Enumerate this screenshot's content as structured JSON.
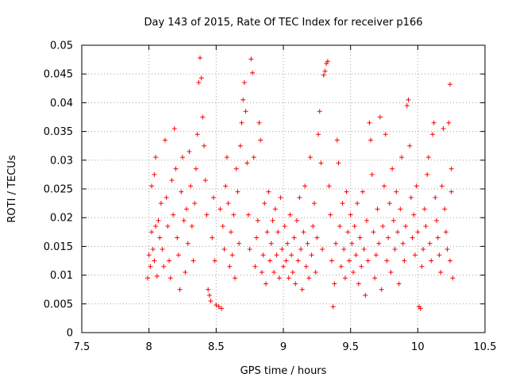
{
  "chart_data": {
    "type": "scatter",
    "title": "Day 143 of 2015, Rate Of TEC Index for receiver p166",
    "xlabel": "GPS time / hours",
    "ylabel": "ROTI / TECUs",
    "xlim": [
      7.5,
      10.5
    ],
    "ylim": [
      0,
      0.05
    ],
    "xticks": [
      {
        "value": 7.5,
        "label": "7.5"
      },
      {
        "value": 8,
        "label": "8"
      },
      {
        "value": 8.5,
        "label": "8.5"
      },
      {
        "value": 9,
        "label": "9"
      },
      {
        "value": 9.5,
        "label": "9.5"
      },
      {
        "value": 10,
        "label": "10"
      },
      {
        "value": 10.5,
        "label": "10.5"
      }
    ],
    "yticks": [
      {
        "value": 0,
        "label": "0"
      },
      {
        "value": 0.005,
        "label": "0.005"
      },
      {
        "value": 0.01,
        "label": "0.01"
      },
      {
        "value": 0.015,
        "label": "0.015"
      },
      {
        "value": 0.02,
        "label": "0.02"
      },
      {
        "value": 0.025,
        "label": "0.025"
      },
      {
        "value": 0.03,
        "label": "0.03"
      },
      {
        "value": 0.035,
        "label": "0.035"
      },
      {
        "value": 0.04,
        "label": "0.04"
      },
      {
        "value": 0.045,
        "label": "0.045"
      },
      {
        "value": 0.05,
        "label": "0.05"
      }
    ],
    "grid": true,
    "marker": "+",
    "marker_color": "#ff0000",
    "series": [
      {
        "name": "ROTI",
        "x_range": [
          7.98,
          10.26
        ],
        "points": [
          [
            7.99,
            0.0095
          ],
          [
            8.0,
            0.0135
          ],
          [
            8.01,
            0.0115
          ],
          [
            8.02,
            0.0175
          ],
          [
            8.03,
            0.0145
          ],
          [
            8.04,
            0.0125
          ],
          [
            8.05,
            0.0185
          ],
          [
            8.06,
            0.0098
          ],
          [
            8.02,
            0.0255
          ],
          [
            8.04,
            0.0275
          ],
          [
            8.05,
            0.0305
          ],
          [
            8.07,
            0.0195
          ],
          [
            8.08,
            0.0165
          ],
          [
            8.09,
            0.0225
          ],
          [
            8.1,
            0.0145
          ],
          [
            8.11,
            0.0115
          ],
          [
            8.12,
            0.0335
          ],
          [
            8.13,
            0.0235
          ],
          [
            8.14,
            0.0185
          ],
          [
            8.15,
            0.0125
          ],
          [
            8.16,
            0.0095
          ],
          [
            8.17,
            0.0265
          ],
          [
            8.18,
            0.0205
          ],
          [
            8.19,
            0.0355
          ],
          [
            8.2,
            0.0285
          ],
          [
            8.21,
            0.0165
          ],
          [
            8.22,
            0.0135
          ],
          [
            8.23,
            0.0075
          ],
          [
            8.24,
            0.0245
          ],
          [
            8.25,
            0.0305
          ],
          [
            8.26,
            0.0195
          ],
          [
            8.27,
            0.0105
          ],
          [
            8.28,
            0.0215
          ],
          [
            8.29,
            0.0155
          ],
          [
            8.3,
            0.0315
          ],
          [
            8.31,
            0.0255
          ],
          [
            8.32,
            0.0185
          ],
          [
            8.33,
            0.0125
          ],
          [
            8.34,
            0.0225
          ],
          [
            8.35,
            0.0285
          ],
          [
            8.36,
            0.0345
          ],
          [
            8.37,
            0.0435
          ],
          [
            8.38,
            0.0478
          ],
          [
            8.39,
            0.0443
          ],
          [
            8.4,
            0.0375
          ],
          [
            8.41,
            0.0325
          ],
          [
            8.42,
            0.0265
          ],
          [
            8.43,
            0.0205
          ],
          [
            8.44,
            0.0075
          ],
          [
            8.45,
            0.0065
          ],
          [
            8.46,
            0.0055
          ],
          [
            8.47,
            0.0165
          ],
          [
            8.48,
            0.0235
          ],
          [
            8.49,
            0.0125
          ],
          [
            8.5,
            0.0048
          ],
          [
            8.52,
            0.0045
          ],
          [
            8.54,
            0.0042
          ],
          [
            8.53,
            0.0215
          ],
          [
            8.55,
            0.0185
          ],
          [
            8.56,
            0.0145
          ],
          [
            8.57,
            0.0255
          ],
          [
            8.58,
            0.0305
          ],
          [
            8.59,
            0.0225
          ],
          [
            8.6,
            0.0115
          ],
          [
            8.61,
            0.0175
          ],
          [
            8.62,
            0.0135
          ],
          [
            8.63,
            0.0205
          ],
          [
            8.64,
            0.0095
          ],
          [
            8.65,
            0.0285
          ],
          [
            8.66,
            0.0245
          ],
          [
            8.67,
            0.0155
          ],
          [
            8.68,
            0.0325
          ],
          [
            8.69,
            0.0365
          ],
          [
            8.7,
            0.0405
          ],
          [
            8.71,
            0.0435
          ],
          [
            8.72,
            0.0385
          ],
          [
            8.73,
            0.0295
          ],
          [
            8.74,
            0.0205
          ],
          [
            8.75,
            0.0145
          ],
          [
            8.76,
            0.0476
          ],
          [
            8.77,
            0.0452
          ],
          [
            8.78,
            0.0305
          ],
          [
            8.79,
            0.0115
          ],
          [
            8.8,
            0.0165
          ],
          [
            8.81,
            0.0195
          ],
          [
            8.82,
            0.0365
          ],
          [
            8.83,
            0.0335
          ],
          [
            8.84,
            0.0105
          ],
          [
            8.85,
            0.0135
          ],
          [
            8.86,
            0.0225
          ],
          [
            8.87,
            0.0085
          ],
          [
            8.88,
            0.0175
          ],
          [
            8.89,
            0.0245
          ],
          [
            8.9,
            0.0125
          ],
          [
            8.91,
            0.0155
          ],
          [
            8.92,
            0.0195
          ],
          [
            8.93,
            0.0105
          ],
          [
            8.94,
            0.0215
          ],
          [
            8.95,
            0.0135
          ],
          [
            8.96,
            0.0175
          ],
          [
            8.97,
            0.0095
          ],
          [
            8.98,
            0.0235
          ],
          [
            8.99,
            0.0145
          ],
          [
            9.0,
            0.0115
          ],
          [
            9.01,
            0.0185
          ],
          [
            9.02,
            0.0125
          ],
          [
            9.03,
            0.0155
          ],
          [
            9.04,
            0.0095
          ],
          [
            9.05,
            0.0205
          ],
          [
            9.06,
            0.0135
          ],
          [
            9.07,
            0.0105
          ],
          [
            9.08,
            0.0165
          ],
          [
            9.09,
            0.0085
          ],
          [
            9.1,
            0.0195
          ],
          [
            9.11,
            0.0125
          ],
          [
            9.12,
            0.0235
          ],
          [
            9.13,
            0.0145
          ],
          [
            9.14,
            0.0075
          ],
          [
            9.15,
            0.0175
          ],
          [
            9.16,
            0.0255
          ],
          [
            9.17,
            0.0115
          ],
          [
            9.18,
            0.0155
          ],
          [
            9.19,
            0.0095
          ],
          [
            9.2,
            0.0305
          ],
          [
            9.21,
            0.0135
          ],
          [
            9.22,
            0.0185
          ],
          [
            9.23,
            0.0225
          ],
          [
            9.24,
            0.0105
          ],
          [
            9.25,
            0.0165
          ],
          [
            9.26,
            0.0345
          ],
          [
            9.27,
            0.0385
          ],
          [
            9.28,
            0.0295
          ],
          [
            9.29,
            0.0145
          ],
          [
            9.3,
            0.0448
          ],
          [
            9.31,
            0.0455
          ],
          [
            9.32,
            0.0468
          ],
          [
            9.33,
            0.0472
          ],
          [
            9.34,
            0.0255
          ],
          [
            9.35,
            0.0205
          ],
          [
            9.36,
            0.0125
          ],
          [
            9.37,
            0.0045
          ],
          [
            9.38,
            0.0085
          ],
          [
            9.39,
            0.0155
          ],
          [
            9.4,
            0.0335
          ],
          [
            9.41,
            0.0295
          ],
          [
            9.42,
            0.0185
          ],
          [
            9.43,
            0.0115
          ],
          [
            9.44,
            0.0225
          ],
          [
            9.45,
            0.0145
          ],
          [
            9.46,
            0.0095
          ],
          [
            9.47,
            0.0245
          ],
          [
            9.48,
            0.0175
          ],
          [
            9.49,
            0.0125
          ],
          [
            9.5,
            0.0205
          ],
          [
            9.51,
            0.0155
          ],
          [
            9.52,
            0.0105
          ],
          [
            9.53,
            0.0185
          ],
          [
            9.54,
            0.0135
          ],
          [
            9.55,
            0.0225
          ],
          [
            9.56,
            0.0085
          ],
          [
            9.57,
            0.0165
          ],
          [
            9.58,
            0.0115
          ],
          [
            9.59,
            0.0245
          ],
          [
            9.6,
            0.0145
          ],
          [
            9.61,
            0.0065
          ],
          [
            9.62,
            0.0195
          ],
          [
            9.63,
            0.0125
          ],
          [
            9.64,
            0.0365
          ],
          [
            9.65,
            0.0335
          ],
          [
            9.66,
            0.0275
          ],
          [
            9.67,
            0.0175
          ],
          [
            9.68,
            0.0095
          ],
          [
            9.69,
            0.0135
          ],
          [
            9.7,
            0.0215
          ],
          [
            9.71,
            0.0155
          ],
          [
            9.72,
            0.0375
          ],
          [
            9.73,
            0.0075
          ],
          [
            9.74,
            0.0185
          ],
          [
            9.75,
            0.0255
          ],
          [
            9.76,
            0.0345
          ],
          [
            9.77,
            0.0125
          ],
          [
            9.78,
            0.0165
          ],
          [
            9.79,
            0.0225
          ],
          [
            9.8,
            0.0105
          ],
          [
            9.81,
            0.0285
          ],
          [
            9.82,
            0.0195
          ],
          [
            9.83,
            0.0145
          ],
          [
            9.84,
            0.0245
          ],
          [
            9.85,
            0.0175
          ],
          [
            9.86,
            0.0085
          ],
          [
            9.87,
            0.0215
          ],
          [
            9.88,
            0.0305
          ],
          [
            9.89,
            0.0155
          ],
          [
            9.9,
            0.0125
          ],
          [
            9.91,
            0.0185
          ],
          [
            9.92,
            0.0395
          ],
          [
            9.93,
            0.0405
          ],
          [
            9.94,
            0.0325
          ],
          [
            9.95,
            0.0235
          ],
          [
            9.96,
            0.0165
          ],
          [
            9.97,
            0.0205
          ],
          [
            9.98,
            0.0135
          ],
          [
            9.99,
            0.0255
          ],
          [
            10.0,
            0.0175
          ],
          [
            10.01,
            0.0045
          ],
          [
            10.02,
            0.0042
          ],
          [
            10.03,
            0.0115
          ],
          [
            10.04,
            0.0145
          ],
          [
            10.05,
            0.0215
          ],
          [
            10.06,
            0.0185
          ],
          [
            10.07,
            0.0275
          ],
          [
            10.08,
            0.0305
          ],
          [
            10.09,
            0.0155
          ],
          [
            10.1,
            0.0125
          ],
          [
            10.11,
            0.0345
          ],
          [
            10.12,
            0.0365
          ],
          [
            10.13,
            0.0235
          ],
          [
            10.14,
            0.0195
          ],
          [
            10.15,
            0.0165
          ],
          [
            10.16,
            0.0135
          ],
          [
            10.17,
            0.0105
          ],
          [
            10.18,
            0.0255
          ],
          [
            10.19,
            0.0355
          ],
          [
            10.2,
            0.0215
          ],
          [
            10.21,
            0.0175
          ],
          [
            10.22,
            0.0145
          ],
          [
            10.23,
            0.0365
          ],
          [
            10.24,
            0.0432
          ],
          [
            10.25,
            0.0285
          ],
          [
            10.26,
            0.0095
          ],
          [
            10.25,
            0.0245
          ],
          [
            10.24,
            0.0125
          ]
        ]
      }
    ]
  }
}
